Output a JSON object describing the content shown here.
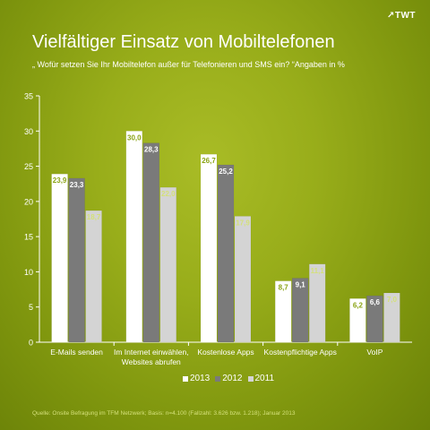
{
  "logo": "↗TWT",
  "title": "Vielfältiger Einsatz von Mobiltelefonen",
  "subtitle": "„ Wofür setzen Sie Ihr Mobiltelefon außer für Telefonieren und SMS ein? “Angaben in %",
  "source": "Quelle: Onsite Befragung im TFM Netzwerk; Basis: n=4.100 (Fallzahl: 3.626 bzw. 1.218); Januar 2013",
  "colors": {
    "bar_2013": "#ffffff",
    "bar_2012": "#7a7a7a",
    "bar_2011": "#d4d4d4",
    "label_2013": "#8aa313",
    "label_2012": "#ffffff",
    "label_2011": "#d4e07a"
  },
  "chart_data": {
    "type": "bar",
    "title": "Vielfältiger Einsatz von Mobiltelefonen",
    "ylim": [
      0,
      35
    ],
    "yticks": [
      0,
      5,
      10,
      15,
      20,
      25,
      30,
      35
    ],
    "grid": false,
    "legend_position": "bottom",
    "categories": [
      [
        "E-Mails senden"
      ],
      [
        "Im Internet einwählen,",
        "Websites abrufen"
      ],
      [
        "Kostenlose Apps"
      ],
      [
        "Kostenpflichtige Apps"
      ],
      [
        "VoIP"
      ]
    ],
    "series": [
      {
        "name": "2013",
        "values": [
          23.9,
          30.0,
          26.7,
          8.7,
          6.2
        ],
        "labels": [
          "23,9",
          "30,0",
          "26,7",
          "8,7",
          "6,2"
        ]
      },
      {
        "name": "2012",
        "values": [
          23.3,
          28.3,
          25.2,
          9.1,
          6.6
        ],
        "labels": [
          "23,3",
          "28,3",
          "25,2",
          "9,1",
          "6,6"
        ]
      },
      {
        "name": "2011",
        "values": [
          18.7,
          22.0,
          17.9,
          11.1,
          7.0
        ],
        "labels": [
          "18,7",
          "22,0",
          "17,9",
          "11,1",
          "7,0"
        ]
      }
    ]
  }
}
